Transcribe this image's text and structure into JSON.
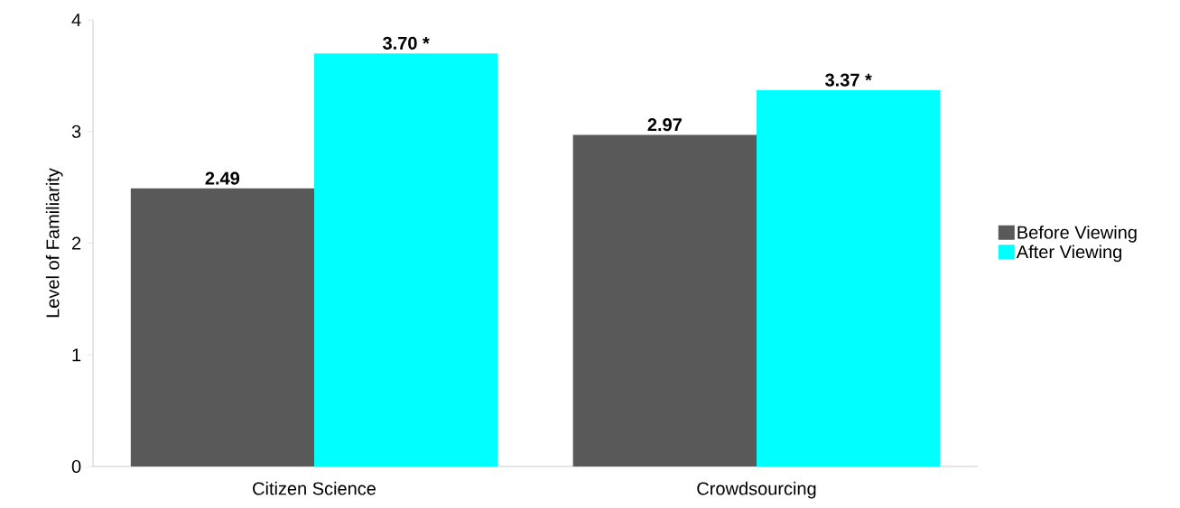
{
  "chart_data": {
    "type": "bar",
    "ylabel": "Level of Familiarity",
    "categories": [
      "Citizen Science",
      "Crowdsourcing"
    ],
    "series": [
      {
        "name": "Before Viewing",
        "color": "#595959",
        "values": [
          2.49,
          2.97
        ],
        "value_labels": [
          "2.49",
          "2.97"
        ]
      },
      {
        "name": "After Viewing",
        "color": "#00ffff",
        "values": [
          3.7,
          3.37
        ],
        "value_labels": [
          "3.70 *",
          "3.37 *"
        ]
      }
    ],
    "ylim": [
      0,
      4
    ],
    "yticks": [
      0,
      1,
      2,
      3,
      4
    ],
    "legend": "right"
  }
}
